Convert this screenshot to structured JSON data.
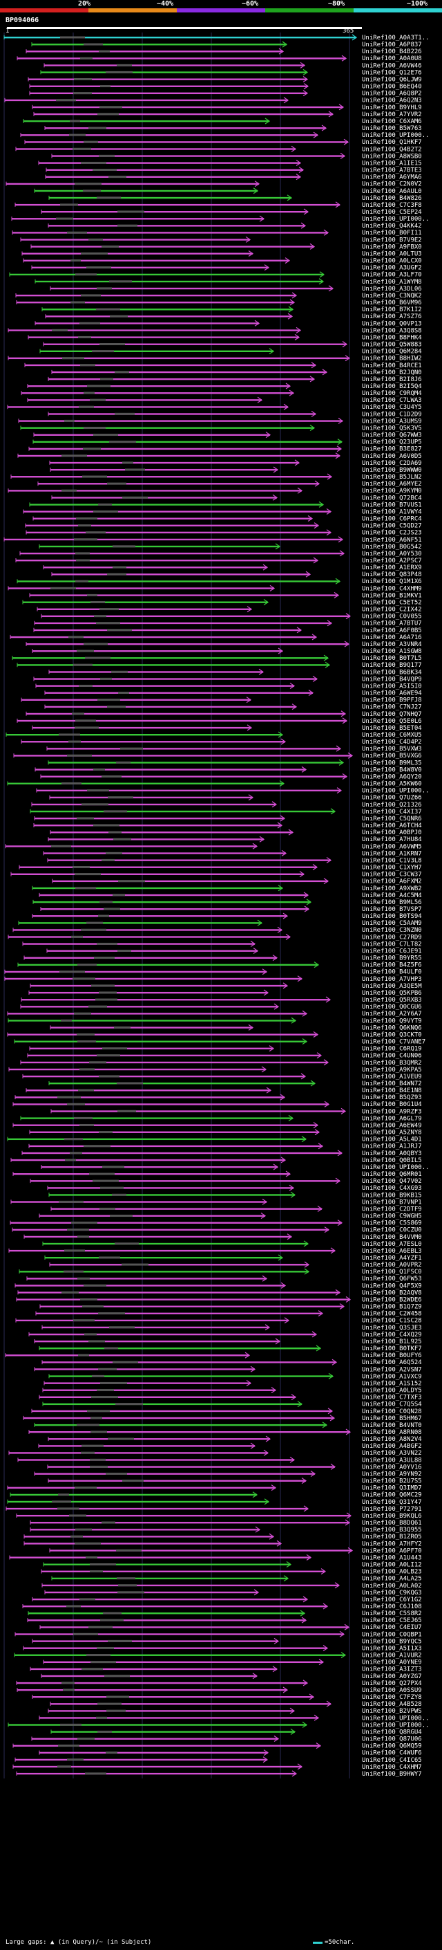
{
  "scale": {
    "labels": [
      "20%",
      "~40%",
      "~60%",
      "~80%",
      "~100%"
    ],
    "colors": [
      "#d4201f",
      "#e88a1a",
      "#8a2be2",
      "#1fa31f",
      "#2fd2d2"
    ]
  },
  "query": {
    "id": "BP094066",
    "start": "1",
    "end": "365"
  },
  "colors": {
    "magenta": "#d24fd2",
    "green": "#37c837",
    "cyan": "#2fd2d2",
    "grid": "#2a2a55",
    "gap": "#555555"
  },
  "hits": [
    "UniRef100_A0A3T1..",
    "UniRef100_A6P837",
    "UniRef100_B4B226",
    "UniRef100_A0A0U8",
    "UniRef100_A6VW46",
    "UniRef100_Q12E76",
    "UniRef100_Q6LJW9",
    "UniRef100_B6EQ40",
    "UniRef100_A6Q8P2",
    "UniRef100_A6Q2N3",
    "UniRef100_B9YHL9",
    "UniRef100_A7YVR2",
    "UniRef100_C6XAM6",
    "UniRef100_B5W763",
    "UniRef100_UPI000..",
    "UniRef100_Q1HKF7",
    "UniRef100_Q4B2T2",
    "UniRef100_A8WSB0",
    "UniRef100_A1IE15",
    "UniRef100_A7BTE3",
    "UniRef100_A6YMA6",
    "UniRef100_C2N0V2",
    "UniRef100_A6AUL0",
    "UniRef100_B4W826",
    "UniRef100_C7C3F8",
    "UniRef100_C5EP24",
    "UniRef100_UPI000..",
    "UniRef100_Q4KK42",
    "UniRef100_B0FI11",
    "UniRef100_B7V9E2",
    "UniRef100_A9FBX0",
    "UniRef100_A0LTU3",
    "UniRef100_A0LCX0",
    "UniRef100_A3UGF2",
    "UniRef100_A3LF70",
    "UniRef100_A1WYM8",
    "UniRef100_A3DL06",
    "UniRef100_C3NQK2",
    "UniRef100_B6VM96",
    "UniRef100_B7K1I2",
    "UniRef100_A7SZ76",
    "UniRef100_Q0VP13",
    "UniRef100_A3Q8S8",
    "UniRef100_B8FHK4",
    "UniRef100_Q5W883",
    "UniRef100_Q6M284",
    "UniRef100_B8HIW2",
    "UniRef100_B4RCE1",
    "UniRef100_B2JQN0",
    "UniRef100_B2I8J6",
    "UniRef100_B2I5Q4",
    "UniRef100_C9RQM4",
    "UniRef100_C7LWA3",
    "UniRef100_C3U4Y5",
    "UniRef100_C1D2D9",
    "UniRef100_A3UMS9",
    "UniRef100_Q5K3V5",
    "UniRef100_Q67WW3",
    "UniRef100_Q23UP5",
    "UniRef100_B3E827",
    "UniRef100_A6V0D5",
    "UniRef100_C2DA69",
    "UniRef100_B9WWW0",
    "UniRef100_B5JLN2",
    "UniRef100_A6MYE2",
    "UniRef100_A9KYM0",
    "UniRef100_Q72BC4",
    "UniRef100_B7VUS1",
    "UniRef100_A1VWY4",
    "UniRef100_C6PRC4",
    "UniRef100_C5QD27",
    "UniRef100_C2JS23",
    "UniRef100_A6NF51",
    "UniRef100_B0G542",
    "UniRef100_A0Y530",
    "UniRef100_A2PSC7",
    "UniRef100_A1ERX9",
    "UniRef100_Q83P48",
    "UniRef100_Q1M1X6",
    "UniRef100_C4XHM9",
    "UniRef100_B1MKV1",
    "UniRef100_C5ET52",
    "UniRef100_C2IX42",
    "UniRef100_C0V055",
    "UniRef100_A7BTU7",
    "UniRef100_A6F0B5",
    "UniRef100_A6A716",
    "UniRef100_A3VNR4",
    "UniRef100_A1SGW8",
    "UniRef100_B0T7L5",
    "UniRef100_B9Q177",
    "UniRef100_B6BK34",
    "UniRef100_B4VQP9",
    "UniRef100_A5I5I0",
    "UniRef100_A6WE94",
    "UniRef100_B9PFJ8",
    "UniRef100_C7NJ27",
    "UniRef100_Q7NHQ7",
    "UniRef100_Q5E0L6",
    "UniRef100_B5ET04",
    "UniRef100_C6MXU5",
    "UniRef100_C4D4P2",
    "UniRef100_B5VXW3",
    "UniRef100_B5VXG6",
    "UniRef100_B9ML35",
    "UniRef100_B4W8V0",
    "UniRef100_A6QY20",
    "UniRef100_A5KW60",
    "UniRef100_UPI000..",
    "UniRef100_Q7UZ66",
    "UniRef100_Q21326",
    "UniRef100_C4XI37",
    "UniRef100_C5QNR6",
    "UniRef100_A6TCH4",
    "UniRef100_A0BPJ0",
    "UniRef100_A7HU84",
    "UniRef100_A6VWM5",
    "UniRef100_A1KRN7",
    "UniRef100_C1V3L8",
    "UniRef100_C1XYH7",
    "UniRef100_C3CW37",
    "UniRef100_A6FXM2",
    "UniRef100_A9XWB2",
    "UniRef100_A4C5M4",
    "UniRef100_B9ML56",
    "UniRef100_B7VSP7",
    "UniRef100_B0TS94",
    "UniRef100_C5AAM9",
    "UniRef100_C3NZN0",
    "UniRef100_C27RD9",
    "UniRef100_C7LT82",
    "UniRef100_C6JE91",
    "UniRef100_B9YR55",
    "UniRef100_B4Z5F6",
    "UniRef100_B4ULF0",
    "UniRef100_A7VHP3",
    "UniRef100_A3QE5M",
    "UniRef100_Q5KPB6",
    "UniRef100_Q5RXB3",
    "UniRef100_Q0CGU6",
    "UniRef100_A2Y6A7",
    "UniRef100_Q9VYT9",
    "UniRef100_Q6KNQ6",
    "UniRef100_Q3CKT0",
    "UniRef100_C7VANE7",
    "UniRef100_C6RQ19",
    "UniRef100_C4UN06",
    "UniRef100_B3QMR2",
    "UniRef100_A9KPA5",
    "UniRef100_A1VEU9",
    "UniRef100_B4WN72",
    "UniRef100_B4E1N8",
    "UniRef100_B5QZ93",
    "UniRef100_B0G1U4",
    "UniRef100_A9RZF3",
    "UniRef100_A6GL79",
    "UniRef100_A6EW49",
    "UniRef100_A5ZNY8",
    "UniRef100_A5L4D1",
    "UniRef100_A1JRJ7",
    "UniRef100_A0QBY3",
    "UniRef100_Q0BIL5",
    "UniRef100_UPI000..",
    "UniRef100_Q6MR01",
    "UniRef100_Q47V02",
    "UniRef100_C4XG93",
    "UniRef100_B9KB15",
    "UniRef100_B7VNP1",
    "UniRef100_C2DTF9",
    "UniRef100_C9WGH5",
    "UniRef100_C5S869",
    "UniRef100_C0CZU0",
    "UniRef100_B4VVM0",
    "UniRef100_A7ESL0",
    "UniRef100_A6EBL3",
    "UniRef100_A4YZF1",
    "UniRef100_A0VPR2",
    "UniRef100_Q1FSC0",
    "UniRef100_Q6FW53",
    "UniRef100_Q4F5X9",
    "UniRef100_B2AQV8",
    "UniRef100_B2WDE6",
    "UniRef100_B1Q7Z9",
    "UniRef100_C2W458",
    "UniRef100_C1SC28",
    "UniRef100_Q3SJE3",
    "UniRef100_C4XQ29",
    "UniRef100_B1L925",
    "UniRef100_B0TKF7",
    "UniRef100_B0UFY6",
    "UniRef100_A6Q524",
    "UniRef100_A2VSN7",
    "UniRef100_A1VXC9",
    "UniRef100_A1S152",
    "UniRef100_A0LDY5",
    "UniRef100_C7TXF3",
    "UniRef100_C7Q5S4",
    "UniRef100_C0QN28",
    "UniRef100_B5HM67",
    "UniRef100_B4VNT0",
    "UniRef100_A8RN08",
    "UniRef100_A8N2V4",
    "UniRef100_A4BGF2",
    "UniRef100_A3VN22",
    "UniRef100_A3UL88",
    "UniRef100_A0YV16",
    "UniRef100_A9YN92",
    "UniRef100_B2U7S5",
    "UniRef100_Q3IMD7",
    "UniRef100_Q6MC29",
    "UniRef100_Q31Y47",
    "UniRef100_P72791",
    "UniRef100_B9KQL6",
    "UniRef100_B8DQ61",
    "UniRef100_B3Q955",
    "UniRef100_B1ZRO5",
    "UniRef100_A7HFY2",
    "UniRef100_A6PF70",
    "UniRef100_A1U443",
    "UniRef100_A0LI12",
    "UniRef100_A0LB23",
    "UniRef100_A4LA25",
    "UniRef100_A0LA02",
    "UniRef100_C9KQG3",
    "UniRef100_C6Y1G2",
    "UniRef100_C6J108",
    "UniRef100_C5S8R2",
    "UniRef100_C5EJ65",
    "UniRef100_C4EIU7",
    "UniRef100_C0QBP1",
    "UniRef100_B9YQC5",
    "UniRef100_A5I1X3",
    "UniRef100_A1VUR2",
    "UniRef100_A0YNE9",
    "UniRef100_A3IZT3",
    "UniRef100_A0YZG7",
    "UniRef100_Q27PX4",
    "UniRef100_A0SSU9",
    "UniRef100_C7FZY8",
    "UniRef100_A4B528",
    "UniRef100_B2VPWS",
    "UniRef100_UPI000..",
    "UniRef100_UPI000..",
    "UniRef100_Q8RGU4",
    "UniRef100_Q87U06",
    "UniRef100_Q6MQ59",
    "UniRef100_C4WUF6",
    "UniRef100_C4IC65",
    "UniRef100_C4XHM7",
    "UniRef100_B9HWY7"
  ],
  "legend": {
    "left": "Large gaps: ▲ (in Query)/~ (in Subject)",
    "right": "=50char."
  }
}
